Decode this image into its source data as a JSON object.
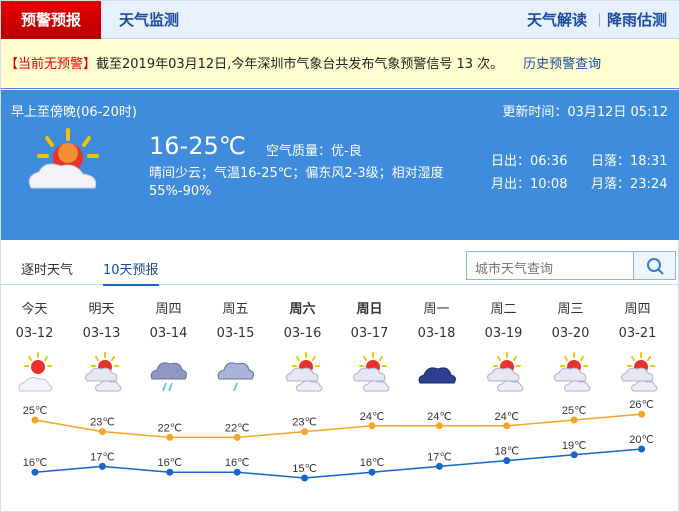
{
  "nav": {
    "active": "预警预报",
    "monitor": "天气监测",
    "interpret": "天气解读",
    "rain": "降雨估测"
  },
  "alert": {
    "status": "【当前无预警】",
    "text": "截至2019年03月12日,今年深圳市气象台共发布气象预警信号 13 次。",
    "history": "历史预警查询"
  },
  "now": {
    "period": "早上至傍晚(06-20时)",
    "updated": "更新时间：03月12日 05:12",
    "temp": "16-25℃",
    "aqi": "空气质量：优-良",
    "desc": "晴间少云；气温16-25℃；偏东风2-3级；相对湿度55%-90%",
    "sunrise": "日出：06:36",
    "sunset": "日落：18:31",
    "moonrise": "月出：10:08",
    "moonset": "月落：23:24",
    "icon": "sun-cloud-icon"
  },
  "tabs": [
    {
      "label": "逐时天气"
    },
    {
      "label": "10天预报"
    }
  ],
  "search": {
    "placeholder": "城市天气查询"
  },
  "colors": {
    "high": "#f5a623",
    "low": "#1466c8",
    "accent": "#3f8cdc",
    "alert": "#e10000"
  },
  "forecast": [
    {
      "day": "今天",
      "date": "03-12",
      "icon": "sun-cloud"
    },
    {
      "day": "明天",
      "date": "03-13",
      "icon": "cloudy-sun"
    },
    {
      "day": "周四",
      "date": "03-14",
      "icon": "thunder-rain"
    },
    {
      "day": "周五",
      "date": "03-15",
      "icon": "light-rain"
    },
    {
      "day": "周六",
      "date": "03-16",
      "icon": "cloudy-sun"
    },
    {
      "day": "周日",
      "date": "03-17",
      "icon": "cloudy-sun"
    },
    {
      "day": "周一",
      "date": "03-18",
      "icon": "overcast"
    },
    {
      "day": "周二",
      "date": "03-19",
      "icon": "cloudy-sun"
    },
    {
      "day": "周三",
      "date": "03-20",
      "icon": "cloudy-sun"
    },
    {
      "day": "周四",
      "date": "03-21",
      "icon": "cloudy-sun"
    }
  ],
  "chart_data": {
    "type": "line",
    "unit": "℃",
    "categories": [
      "03-12",
      "03-13",
      "03-14",
      "03-15",
      "03-16",
      "03-17",
      "03-18",
      "03-19",
      "03-20",
      "03-21"
    ],
    "series": [
      {
        "values": [
          25,
          23,
          22,
          22,
          23,
          24,
          24,
          24,
          25,
          26
        ]
      },
      {
        "values": [
          16,
          17,
          16,
          16,
          15,
          16,
          17,
          18,
          19,
          20
        ]
      }
    ]
  }
}
